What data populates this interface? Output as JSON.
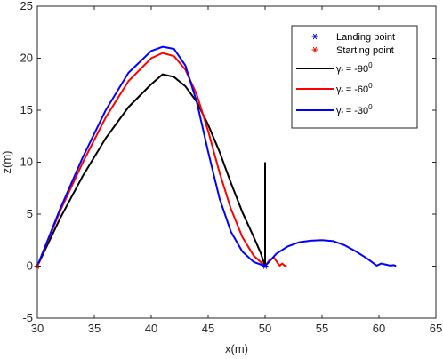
{
  "chart_data": {
    "type": "line",
    "xlabel": "x(m)",
    "ylabel": "z(m)",
    "xlim": [
      30,
      65
    ],
    "ylim": [
      -5,
      25
    ],
    "xticks": [
      30,
      35,
      40,
      45,
      50,
      55,
      60,
      65
    ],
    "yticks": [
      -5,
      0,
      5,
      10,
      15,
      20,
      25
    ],
    "grid": false,
    "legend_position": "top-right",
    "markers": [
      {
        "name": "Landing point",
        "symbol": "*",
        "color": "#0000ff",
        "x": 50,
        "y": 0
      },
      {
        "name": "Starting point",
        "symbol": "*",
        "color": "#ff0000",
        "x": 30,
        "y": 0
      }
    ],
    "series": [
      {
        "name": "γf = -90⁰",
        "legend": {
          "main": "γ",
          "sub": "f",
          "rest": " = -90",
          "sup": "0"
        },
        "color": "#000000",
        "points": [
          [
            30,
            0
          ],
          [
            32,
            4.6
          ],
          [
            34,
            8.7
          ],
          [
            36,
            12.3
          ],
          [
            38,
            15.3
          ],
          [
            40,
            17.5
          ],
          [
            41,
            18.45
          ],
          [
            42,
            18.2
          ],
          [
            43,
            17.3
          ],
          [
            44,
            15.8
          ],
          [
            45,
            13.6
          ],
          [
            46,
            11.0
          ],
          [
            47,
            8.0
          ],
          [
            48,
            5.2
          ],
          [
            49,
            2.8
          ],
          [
            49.6,
            1.3
          ],
          [
            50,
            0
          ],
          [
            50,
            10
          ]
        ]
      },
      {
        "name": "γf = -60⁰",
        "legend": {
          "main": "γ",
          "sub": "f",
          "rest": " = -60",
          "sup": "0"
        },
        "color": "#ff0000",
        "points": [
          [
            30,
            0
          ],
          [
            32,
            5.3
          ],
          [
            34,
            10.0
          ],
          [
            36,
            14.3
          ],
          [
            38,
            17.8
          ],
          [
            40,
            20.0
          ],
          [
            41,
            20.5
          ],
          [
            42,
            20.2
          ],
          [
            43,
            18.9
          ],
          [
            44,
            16.5
          ],
          [
            45,
            13.0
          ],
          [
            46,
            9.0
          ],
          [
            47,
            5.5
          ],
          [
            48,
            2.8
          ],
          [
            49,
            1.0
          ],
          [
            50,
            0
          ],
          [
            50.4,
            0.6
          ],
          [
            50.8,
            0.8
          ],
          [
            51.1,
            0.3
          ],
          [
            51.3,
            0.05
          ],
          [
            51.5,
            0.25
          ],
          [
            51.7,
            0.05
          ],
          [
            51.9,
            0.0
          ]
        ]
      },
      {
        "name": "γf = -30⁰",
        "legend": {
          "main": "γ",
          "sub": "f",
          "rest": " = -30",
          "sup": "0"
        },
        "color": "#0000ff",
        "points": [
          [
            30,
            0
          ],
          [
            32,
            5.5
          ],
          [
            34,
            10.5
          ],
          [
            36,
            15.0
          ],
          [
            38,
            18.6
          ],
          [
            40,
            20.7
          ],
          [
            41,
            21.1
          ],
          [
            42,
            20.9
          ],
          [
            43,
            19.3
          ],
          [
            44,
            15.8
          ],
          [
            45,
            11.0
          ],
          [
            46,
            6.5
          ],
          [
            47,
            3.3
          ],
          [
            48,
            1.4
          ],
          [
            49,
            0.4
          ],
          [
            50,
            0
          ],
          [
            51,
            1.2
          ],
          [
            52,
            1.9
          ],
          [
            53,
            2.3
          ],
          [
            54,
            2.45
          ],
          [
            55,
            2.5
          ],
          [
            56,
            2.4
          ],
          [
            57,
            2.0
          ],
          [
            58,
            1.4
          ],
          [
            59,
            0.7
          ],
          [
            59.8,
            0.05
          ],
          [
            60.2,
            0.25
          ],
          [
            60.6,
            0.15
          ],
          [
            61.0,
            0.05
          ],
          [
            61.3,
            0.1
          ],
          [
            61.5,
            0.0
          ]
        ]
      }
    ]
  }
}
